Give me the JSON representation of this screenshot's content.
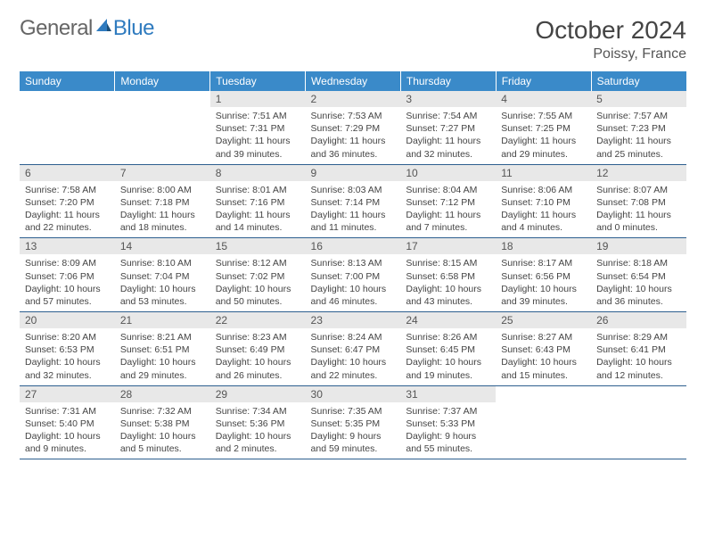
{
  "brand": {
    "part1": "General",
    "part2": "Blue"
  },
  "title": "October 2024",
  "location": "Poissy, France",
  "colors": {
    "header_bg": "#3a8ac9",
    "header_text": "#ffffff",
    "daynum_bg": "#e8e8e8",
    "cell_border": "#2d5f8f",
    "text": "#444444"
  },
  "layout": {
    "first_weekday_index": 2,
    "days_in_month": 31,
    "weeks": 5
  },
  "weekdays": [
    "Sunday",
    "Monday",
    "Tuesday",
    "Wednesday",
    "Thursday",
    "Friday",
    "Saturday"
  ],
  "days": [
    {
      "n": 1,
      "sunrise": "7:51 AM",
      "sunset": "7:31 PM",
      "dl_h": 11,
      "dl_m": 39
    },
    {
      "n": 2,
      "sunrise": "7:53 AM",
      "sunset": "7:29 PM",
      "dl_h": 11,
      "dl_m": 36
    },
    {
      "n": 3,
      "sunrise": "7:54 AM",
      "sunset": "7:27 PM",
      "dl_h": 11,
      "dl_m": 32
    },
    {
      "n": 4,
      "sunrise": "7:55 AM",
      "sunset": "7:25 PM",
      "dl_h": 11,
      "dl_m": 29
    },
    {
      "n": 5,
      "sunrise": "7:57 AM",
      "sunset": "7:23 PM",
      "dl_h": 11,
      "dl_m": 25
    },
    {
      "n": 6,
      "sunrise": "7:58 AM",
      "sunset": "7:20 PM",
      "dl_h": 11,
      "dl_m": 22
    },
    {
      "n": 7,
      "sunrise": "8:00 AM",
      "sunset": "7:18 PM",
      "dl_h": 11,
      "dl_m": 18
    },
    {
      "n": 8,
      "sunrise": "8:01 AM",
      "sunset": "7:16 PM",
      "dl_h": 11,
      "dl_m": 14
    },
    {
      "n": 9,
      "sunrise": "8:03 AM",
      "sunset": "7:14 PM",
      "dl_h": 11,
      "dl_m": 11
    },
    {
      "n": 10,
      "sunrise": "8:04 AM",
      "sunset": "7:12 PM",
      "dl_h": 11,
      "dl_m": 7
    },
    {
      "n": 11,
      "sunrise": "8:06 AM",
      "sunset": "7:10 PM",
      "dl_h": 11,
      "dl_m": 4
    },
    {
      "n": 12,
      "sunrise": "8:07 AM",
      "sunset": "7:08 PM",
      "dl_h": 11,
      "dl_m": 0
    },
    {
      "n": 13,
      "sunrise": "8:09 AM",
      "sunset": "7:06 PM",
      "dl_h": 10,
      "dl_m": 57
    },
    {
      "n": 14,
      "sunrise": "8:10 AM",
      "sunset": "7:04 PM",
      "dl_h": 10,
      "dl_m": 53
    },
    {
      "n": 15,
      "sunrise": "8:12 AM",
      "sunset": "7:02 PM",
      "dl_h": 10,
      "dl_m": 50
    },
    {
      "n": 16,
      "sunrise": "8:13 AM",
      "sunset": "7:00 PM",
      "dl_h": 10,
      "dl_m": 46
    },
    {
      "n": 17,
      "sunrise": "8:15 AM",
      "sunset": "6:58 PM",
      "dl_h": 10,
      "dl_m": 43
    },
    {
      "n": 18,
      "sunrise": "8:17 AM",
      "sunset": "6:56 PM",
      "dl_h": 10,
      "dl_m": 39
    },
    {
      "n": 19,
      "sunrise": "8:18 AM",
      "sunset": "6:54 PM",
      "dl_h": 10,
      "dl_m": 36
    },
    {
      "n": 20,
      "sunrise": "8:20 AM",
      "sunset": "6:53 PM",
      "dl_h": 10,
      "dl_m": 32
    },
    {
      "n": 21,
      "sunrise": "8:21 AM",
      "sunset": "6:51 PM",
      "dl_h": 10,
      "dl_m": 29
    },
    {
      "n": 22,
      "sunrise": "8:23 AM",
      "sunset": "6:49 PM",
      "dl_h": 10,
      "dl_m": 26
    },
    {
      "n": 23,
      "sunrise": "8:24 AM",
      "sunset": "6:47 PM",
      "dl_h": 10,
      "dl_m": 22
    },
    {
      "n": 24,
      "sunrise": "8:26 AM",
      "sunset": "6:45 PM",
      "dl_h": 10,
      "dl_m": 19
    },
    {
      "n": 25,
      "sunrise": "8:27 AM",
      "sunset": "6:43 PM",
      "dl_h": 10,
      "dl_m": 15
    },
    {
      "n": 26,
      "sunrise": "8:29 AM",
      "sunset": "6:41 PM",
      "dl_h": 10,
      "dl_m": 12
    },
    {
      "n": 27,
      "sunrise": "7:31 AM",
      "sunset": "5:40 PM",
      "dl_h": 10,
      "dl_m": 9
    },
    {
      "n": 28,
      "sunrise": "7:32 AM",
      "sunset": "5:38 PM",
      "dl_h": 10,
      "dl_m": 5
    },
    {
      "n": 29,
      "sunrise": "7:34 AM",
      "sunset": "5:36 PM",
      "dl_h": 10,
      "dl_m": 2
    },
    {
      "n": 30,
      "sunrise": "7:35 AM",
      "sunset": "5:35 PM",
      "dl_h": 9,
      "dl_m": 59
    },
    {
      "n": 31,
      "sunrise": "7:37 AM",
      "sunset": "5:33 PM",
      "dl_h": 9,
      "dl_m": 55
    }
  ]
}
